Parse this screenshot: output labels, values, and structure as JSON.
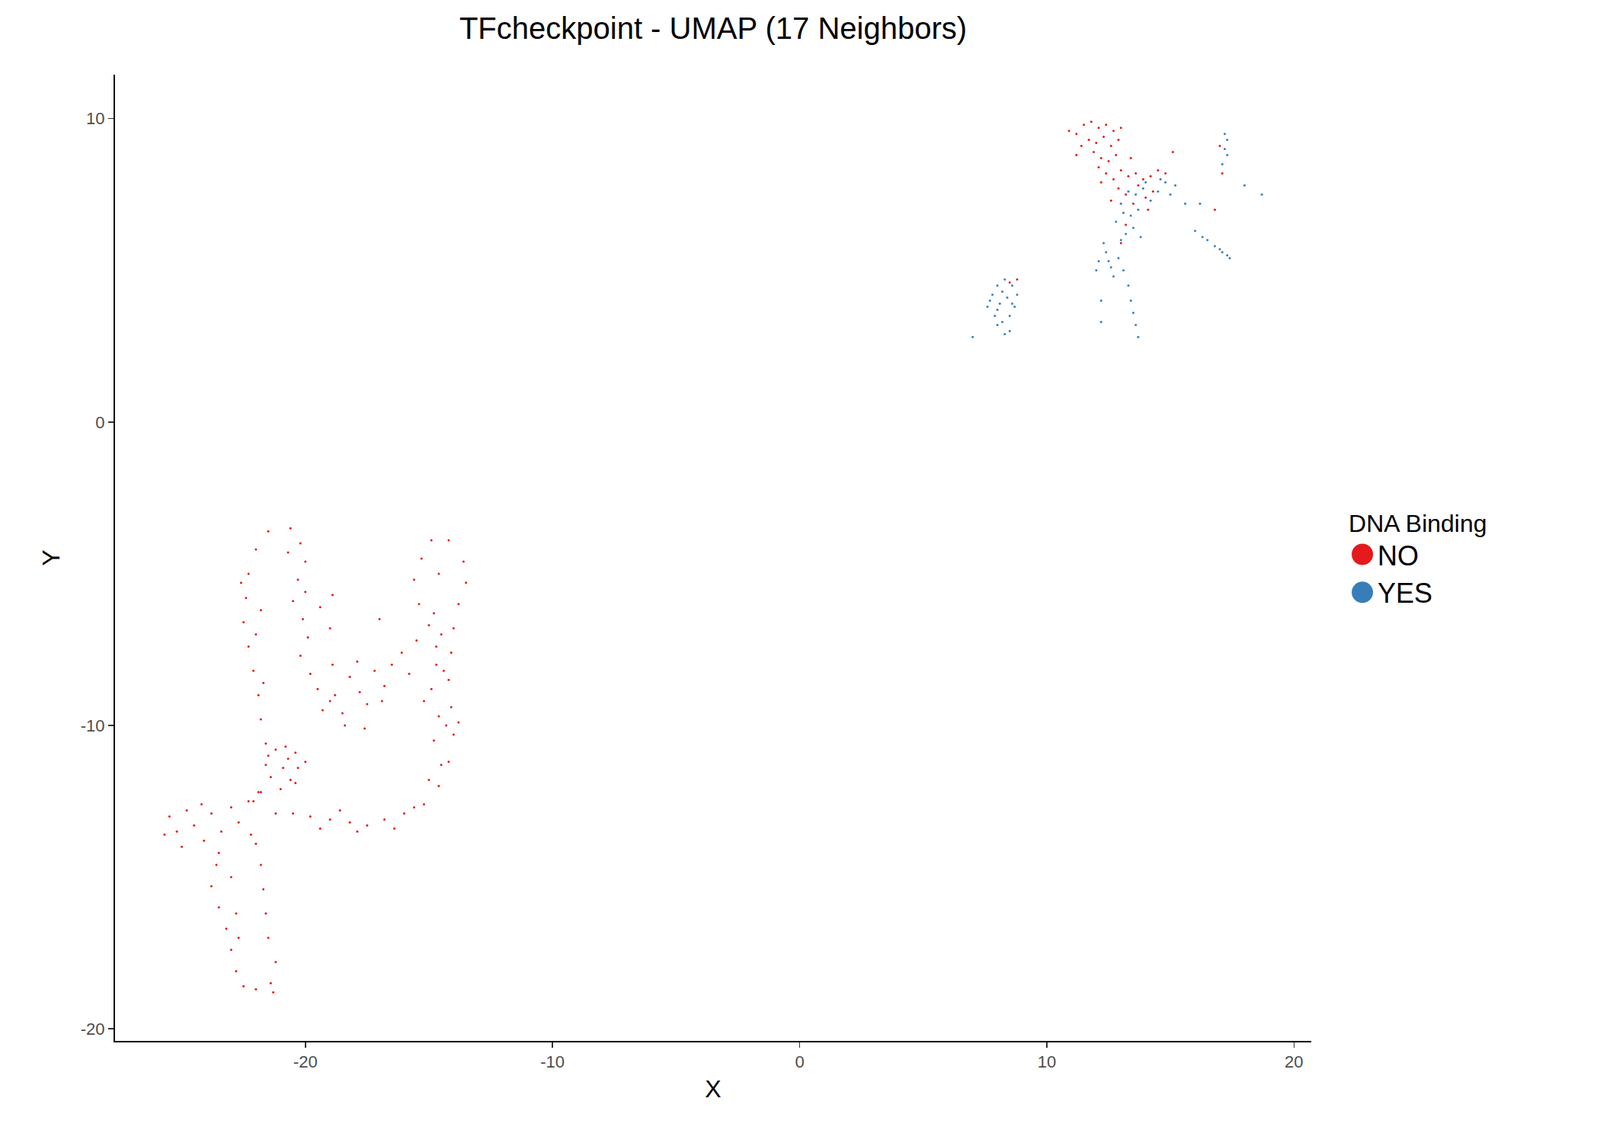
{
  "chart_data": {
    "type": "scatter",
    "title": "TFcheckpoint - UMAP (17 Neighbors)",
    "x_label": "X",
    "y_label": "Y",
    "legend_title": "DNA Binding",
    "legend": "right",
    "grid": false,
    "marker": "point",
    "xlim": [
      -27.7,
      20.7
    ],
    "ylim": [
      -20.4,
      11.45
    ],
    "xticks": [
      -20,
      -10,
      0,
      10,
      20
    ],
    "yticks": [
      -20,
      -10,
      0,
      10
    ],
    "series": [
      {
        "name": "NO",
        "color": "#e41a1c",
        "x": [
          -21.5,
          -22.0,
          -22.3,
          -22.4,
          -22.5,
          -22.3,
          -22.1,
          -21.9,
          -21.8,
          -21.6,
          -22.6,
          -21.8,
          -22.0,
          -21.7,
          -20.6,
          -20.2,
          -20.0,
          -20.3,
          -20.5,
          -20.1,
          -19.9,
          -20.2,
          -19.8,
          -19.5,
          -19.0,
          -20.7,
          -20.0,
          -19.3,
          -18.8,
          -18.5,
          -18.2,
          -17.8,
          -17.5,
          -17.2,
          -16.8,
          -16.5,
          -16.1,
          -15.8,
          -15.5,
          -18.9,
          -17.9,
          -16.9,
          -18.4,
          -17.6,
          -18.9,
          -19.4,
          -14.9,
          -15.3,
          -15.6,
          -15.4,
          -15.0,
          -14.7,
          -14.2,
          -13.6,
          -13.5,
          -13.8,
          -14.0,
          -14.1,
          -14.2,
          -14.1,
          -14.0,
          -14.2,
          -14.6,
          -15.2,
          -14.6,
          -14.8,
          -14.5,
          -14.7,
          -14.9,
          -14.6,
          -14.8,
          -14.5,
          -15.0,
          -14.3,
          -14.4,
          -15.2,
          -13.8,
          -16.0,
          -16.8,
          -17.5,
          -18.2,
          -19.0,
          -19.8,
          -20.5,
          -21.2,
          -16.4,
          -17.9,
          -19.4,
          -15.6,
          -18.6,
          -25.5,
          -25.2,
          -24.8,
          -24.5,
          -24.1,
          -23.8,
          -23.4,
          -23.0,
          -22.7,
          -22.3,
          -25.0,
          -24.2,
          -23.5,
          -22.2,
          -25.7,
          -23.6,
          -23.8,
          -23.5,
          -23.2,
          -23.0,
          -22.8,
          -22.5,
          -22.0,
          -21.4,
          -21.2,
          -21.5,
          -21.6,
          -21.7,
          -21.8,
          -22.0,
          -21.9,
          -23.0,
          -22.8,
          -21.3,
          -22.7,
          -21.5,
          -21.2,
          -20.8,
          -20.4,
          -20.3,
          -20.6,
          -21.0,
          -21.4,
          -21.6,
          -20.9,
          -21.8,
          -22.1,
          -20.4,
          -20.7,
          -20.0,
          -17.0,
          -19.0,
          10.9,
          11.2,
          11.5,
          11.8,
          12.1,
          12.4,
          12.7,
          13.0,
          11.7,
          12.0,
          12.3,
          12.6,
          11.9,
          12.2,
          12.5,
          12.8,
          12.1,
          12.4,
          12.7,
          13.0,
          13.3,
          13.6,
          13.9,
          14.2,
          14.5,
          14.8,
          12.9,
          13.2,
          13.5,
          14.0,
          14.3,
          13.7,
          11.4,
          12.9,
          11.2,
          15.1,
          12.6,
          14.1,
          13.2,
          13.0,
          8.8,
          8.5,
          17.0,
          17.1,
          16.8,
          13.4,
          12.2
        ],
        "y": [
          -3.6,
          -4.2,
          -5.0,
          -5.8,
          -6.6,
          -7.4,
          -8.2,
          -9.0,
          -9.8,
          -10.6,
          -5.3,
          -6.2,
          -7.0,
          -8.6,
          -3.5,
          -4.0,
          -4.6,
          -5.2,
          -5.9,
          -6.5,
          -7.1,
          -7.7,
          -8.3,
          -8.8,
          -9.2,
          -4.3,
          -5.6,
          -9.5,
          -9.0,
          -9.6,
          -8.4,
          -8.9,
          -9.3,
          -8.2,
          -8.7,
          -8.0,
          -7.6,
          -8.3,
          -7.2,
          -8.0,
          -7.9,
          -9.2,
          -10.0,
          -10.1,
          -5.7,
          -6.1,
          -3.9,
          -4.5,
          -5.2,
          -6.0,
          -6.7,
          -7.4,
          -3.9,
          -4.6,
          -5.3,
          -6.0,
          -6.8,
          -7.6,
          -8.5,
          -9.4,
          -10.3,
          -11.2,
          -12.0,
          -12.6,
          -5.0,
          -6.3,
          -7.0,
          -8.0,
          -8.8,
          -9.7,
          -10.5,
          -11.3,
          -11.8,
          -10.0,
          -8.2,
          -9.2,
          -9.9,
          -12.9,
          -13.1,
          -13.3,
          -13.2,
          -13.1,
          -13.0,
          -12.9,
          -12.9,
          -13.4,
          -13.5,
          -13.4,
          -12.7,
          -12.8,
          -13.0,
          -13.5,
          -12.8,
          -13.3,
          -13.8,
          -12.9,
          -13.5,
          -12.7,
          -13.2,
          -12.5,
          -14.0,
          -12.6,
          -14.2,
          -13.6,
          -13.6,
          -14.6,
          -15.3,
          -16.0,
          -16.7,
          -17.4,
          -18.1,
          -18.6,
          -18.7,
          -18.5,
          -17.8,
          -17.0,
          -16.2,
          -15.4,
          -14.6,
          -13.9,
          -12.2,
          -15.0,
          -16.2,
          -18.8,
          -17.0,
          -11.0,
          -10.8,
          -10.7,
          -10.9,
          -11.4,
          -11.8,
          -12.1,
          -11.7,
          -11.3,
          -11.4,
          -12.2,
          -12.5,
          -11.9,
          -11.1,
          -11.2,
          -6.5,
          -6.8,
          9.6,
          9.5,
          9.8,
          9.9,
          9.7,
          9.8,
          9.6,
          9.7,
          9.3,
          9.2,
          9.4,
          9.1,
          8.9,
          8.7,
          8.6,
          8.8,
          8.4,
          8.2,
          8.0,
          8.3,
          8.1,
          8.2,
          8.0,
          8.1,
          8.3,
          8.2,
          7.7,
          7.5,
          7.2,
          7.4,
          7.6,
          7.8,
          9.1,
          9.3,
          8.8,
          8.9,
          7.3,
          7.0,
          6.5,
          5.9,
          4.7,
          4.6,
          9.1,
          8.2,
          7.0,
          8.7,
          7.9
        ]
      },
      {
        "name": "YES",
        "color": "#377eb8",
        "x": [
          7.6,
          7.8,
          8.0,
          8.3,
          8.6,
          8.8,
          8.7,
          8.5,
          8.2,
          7.9,
          8.1,
          8.4,
          8.2,
          7.7,
          8.6,
          8.0,
          8.3,
          8.5,
          7.0,
          8.0,
          13.0,
          13.3,
          13.6,
          13.9,
          14.2,
          14.5,
          14.8,
          15.0,
          13.1,
          13.4,
          13.7,
          12.8,
          13.2,
          13.5,
          12.4,
          12.1,
          12.6,
          12.3,
          12.9,
          13.1,
          13.3,
          13.4,
          13.5,
          13.6,
          13.7,
          12.0,
          12.7,
          12.2,
          14.6,
          15.2,
          15.6,
          16.2,
          13.8,
          13.0,
          12.5,
          14.0,
          17.2,
          17.3,
          17.2,
          17.1,
          17.3,
          16.5,
          16.8,
          17.0,
          17.3,
          17.4,
          17.1,
          16.3,
          18.0,
          18.7,
          16.0,
          12.2
        ],
        "y": [
          3.8,
          4.2,
          4.5,
          4.7,
          4.5,
          4.2,
          3.8,
          3.5,
          3.3,
          3.5,
          3.9,
          4.1,
          4.3,
          4.0,
          3.9,
          3.2,
          2.9,
          3.0,
          2.8,
          3.7,
          7.2,
          7.6,
          7.5,
          7.7,
          7.3,
          7.6,
          7.9,
          7.5,
          6.9,
          6.8,
          7.0,
          6.6,
          6.2,
          6.4,
          5.6,
          5.3,
          5.1,
          5.9,
          5.4,
          5.0,
          4.5,
          4.0,
          3.6,
          3.2,
          2.8,
          5.0,
          4.8,
          3.3,
          8.0,
          7.8,
          7.2,
          7.2,
          6.1,
          6.0,
          5.3,
          7.9,
          9.5,
          9.3,
          9.0,
          8.5,
          8.8,
          6.0,
          5.8,
          5.7,
          5.5,
          5.4,
          5.6,
          6.1,
          7.8,
          7.5,
          6.3,
          4.0
        ]
      }
    ]
  }
}
